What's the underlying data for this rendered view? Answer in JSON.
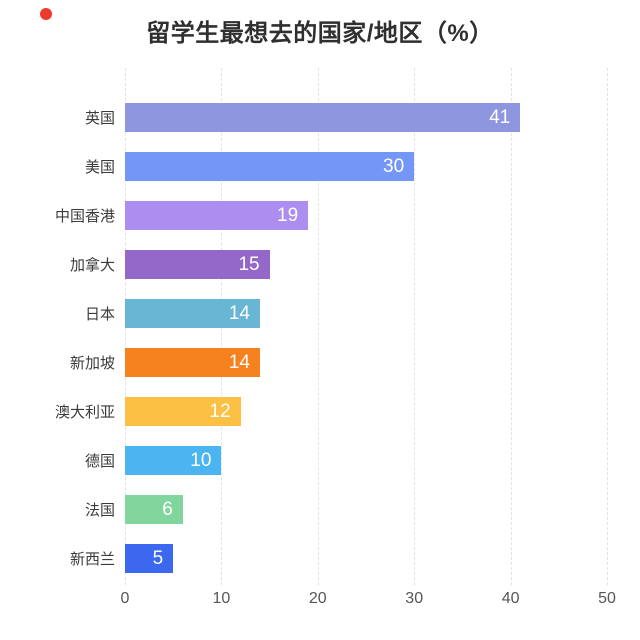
{
  "page": {
    "background": "#ffffff"
  },
  "click_marker": {
    "color": "#ec3b2d"
  },
  "chart_data": {
    "type": "bar",
    "orientation": "horizontal",
    "title": "留学生最想去的国家/地区（%）",
    "categories": [
      "英国",
      "美国",
      "中国香港",
      "加拿大",
      "日本",
      "新加坡",
      "澳大利亚",
      "德国",
      "法国",
      "新西兰"
    ],
    "values": [
      41,
      30,
      19,
      15,
      14,
      14,
      12,
      10,
      6,
      5
    ],
    "bar_colors": [
      "#8f96e0",
      "#7496f6",
      "#ab8ef0",
      "#9468c9",
      "#68b5d4",
      "#f5821f",
      "#fcc044",
      "#4ab5f0",
      "#81d69e",
      "#3c68ef"
    ],
    "xlabel": "",
    "ylabel": "",
    "xlim": [
      0,
      50
    ],
    "x_ticks": [
      0,
      10,
      20,
      30,
      40,
      50
    ],
    "grid": "vertical-dashed",
    "grid_color": "#e2e2e2",
    "value_labels": "inside-right",
    "value_label_color": "#ffffff",
    "legend_position": "none",
    "title_color": "#2f2f2f",
    "category_label_color": "#3b3b3b",
    "tick_label_color": "#565656"
  }
}
